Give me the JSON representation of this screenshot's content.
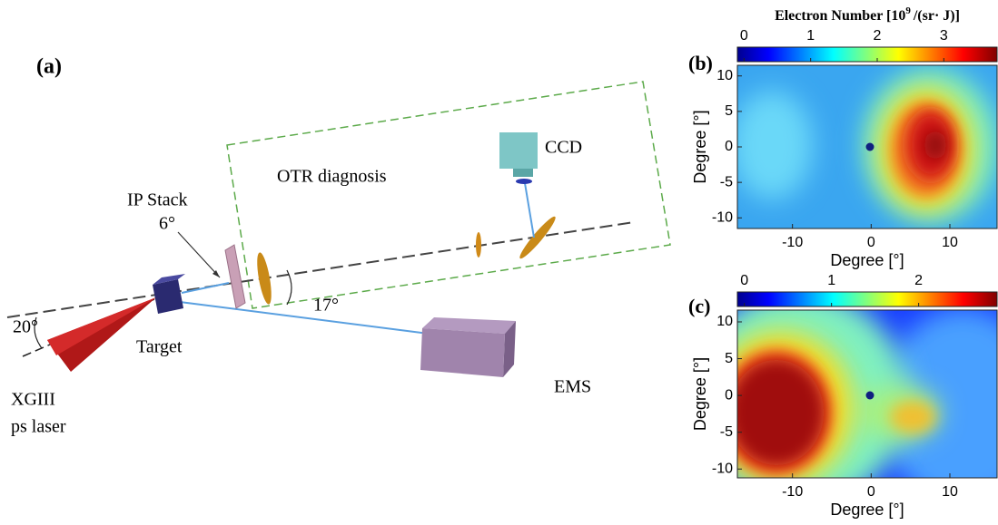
{
  "panel_a": {
    "label": "(a)",
    "ip_stack": "IP Stack",
    "angle_ip": "6°",
    "otr": "OTR diagnosis",
    "ccd": "CCD",
    "angle_ems": "17°",
    "angle_laser": "20°",
    "target": "Target",
    "laser": [
      "XGIII",
      "ps laser"
    ],
    "ems": "EMS"
  },
  "colorbar_title": {
    "text": "Electron Number [10",
    "exponent": "9",
    "unit": "/(sr· J)]"
  },
  "panels": [
    {
      "label": "(b)",
      "xlabel": "Degree [°]",
      "ylabel": "Degree [°]",
      "xlim": [
        -17,
        16
      ],
      "ylim": [
        -11.5,
        11.5
      ],
      "xticks": [
        -10,
        0,
        10
      ],
      "yticks": [
        10,
        5,
        0,
        -5,
        -10
      ],
      "clim": [
        -0.1,
        3.8
      ],
      "cticks": [
        0,
        1,
        2,
        3
      ]
    },
    {
      "label": "(c)",
      "xlabel": "Degree [°]",
      "ylabel": "Degree [°]",
      "xlim": [
        -17,
        16
      ],
      "ylim": [
        -11.2,
        11.6
      ],
      "xticks": [
        -10,
        0,
        10
      ],
      "yticks": [
        10,
        5,
        0,
        -5,
        -10
      ],
      "clim": [
        -0.08,
        2.9
      ],
      "cticks": [
        0,
        1,
        2
      ]
    }
  ]
}
